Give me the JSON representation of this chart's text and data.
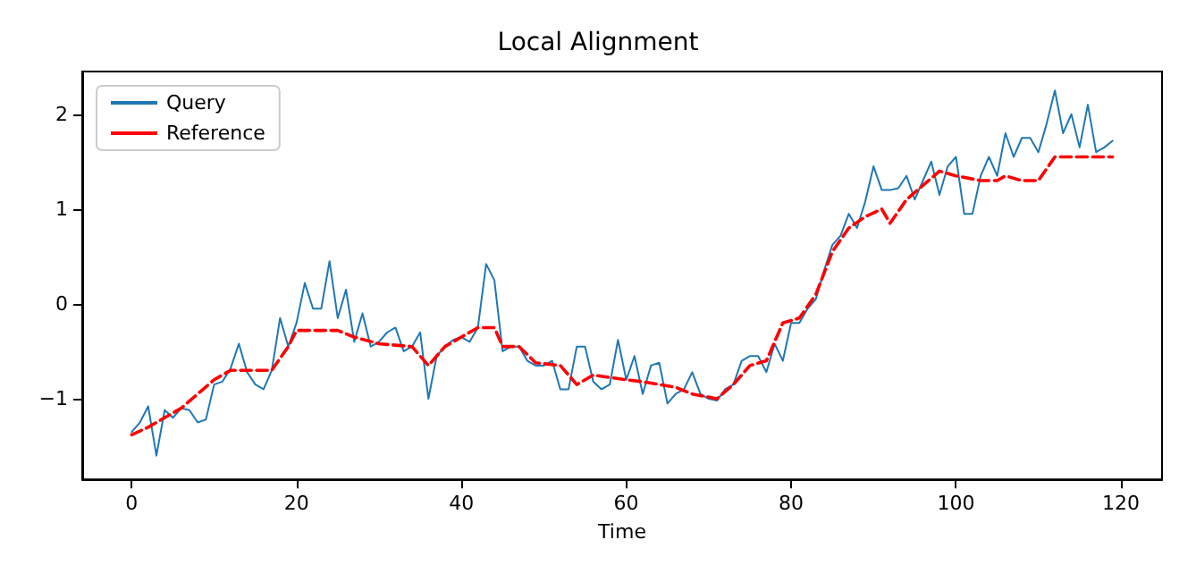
{
  "chart_data": {
    "type": "line",
    "title": "Local Alignment",
    "xlabel": "Time",
    "xlim": [
      -6,
      125
    ],
    "xticks": [
      0,
      20,
      40,
      60,
      80,
      100,
      120
    ],
    "ylim": [
      -1.85,
      2.45
    ],
    "yticks": [
      -1,
      0,
      1,
      2
    ],
    "grid": false,
    "legend": "top left",
    "marker": "none",
    "series": [
      {
        "name": "Query",
        "color": "#1f77b4",
        "line_style": "solid",
        "x": [
          0,
          1,
          2,
          3,
          4,
          5,
          6,
          7,
          8,
          9,
          10,
          11,
          12,
          13,
          14,
          15,
          16,
          17,
          18,
          19,
          20,
          21,
          22,
          23,
          24,
          25,
          26,
          27,
          28,
          29,
          30,
          31,
          32,
          33,
          34,
          35,
          36,
          37,
          38,
          39,
          40,
          41,
          42,
          43,
          44,
          45,
          46,
          47,
          48,
          49,
          50,
          51,
          52,
          53,
          54,
          55,
          56,
          57,
          58,
          59,
          60,
          61,
          62,
          63,
          64,
          65,
          66,
          67,
          68,
          69,
          70,
          71,
          72,
          73,
          74,
          75,
          76,
          77,
          78,
          79,
          80,
          81,
          82,
          83,
          84,
          85,
          86,
          87,
          88,
          89,
          90,
          91,
          92,
          93,
          94,
          95,
          96,
          97,
          98,
          99,
          100,
          101,
          102,
          103,
          104,
          105,
          106,
          107,
          108,
          109,
          110,
          111,
          112,
          113,
          114,
          115,
          116,
          117,
          118,
          119
        ],
        "values": [
          -1.35,
          -1.25,
          -1.08,
          -1.6,
          -1.12,
          -1.2,
          -1.1,
          -1.12,
          -1.25,
          -1.22,
          -0.85,
          -0.82,
          -0.68,
          -0.42,
          -0.72,
          -0.85,
          -0.9,
          -0.7,
          -0.15,
          -0.45,
          -0.2,
          0.22,
          -0.05,
          -0.05,
          0.45,
          -0.15,
          0.15,
          -0.4,
          -0.1,
          -0.45,
          -0.4,
          -0.3,
          -0.25,
          -0.5,
          -0.45,
          -0.3,
          -1.0,
          -0.55,
          -0.45,
          -0.38,
          -0.35,
          -0.4,
          -0.25,
          0.42,
          0.25,
          -0.5,
          -0.45,
          -0.45,
          -0.6,
          -0.65,
          -0.65,
          -0.6,
          -0.9,
          -0.9,
          -0.45,
          -0.45,
          -0.82,
          -0.9,
          -0.85,
          -0.38,
          -0.8,
          -0.55,
          -0.95,
          -0.65,
          -0.62,
          -1.05,
          -0.95,
          -0.9,
          -0.72,
          -0.95,
          -1.0,
          -1.02,
          -0.9,
          -0.85,
          -0.6,
          -0.55,
          -0.55,
          -0.72,
          -0.42,
          -0.6,
          -0.2,
          -0.2,
          -0.05,
          0.05,
          0.35,
          0.62,
          0.72,
          0.95,
          0.8,
          1.08,
          1.45,
          1.2,
          1.2,
          1.22,
          1.35,
          1.1,
          1.3,
          1.5,
          1.15,
          1.45,
          1.55,
          0.95,
          0.95,
          1.35,
          1.55,
          1.35,
          1.8,
          1.55,
          1.75,
          1.75,
          1.6,
          1.9,
          2.25,
          1.8,
          2.0,
          1.65,
          2.1,
          1.6,
          1.65,
          1.72
        ]
      },
      {
        "name": "Reference",
        "color": "#ff0000",
        "line_style": "dashed",
        "x": [
          0,
          2,
          4,
          6,
          8,
          10,
          12,
          17,
          19,
          20,
          25,
          27,
          30,
          34,
          36,
          38,
          40,
          42,
          44,
          45,
          47,
          49,
          52,
          54,
          56,
          60,
          62,
          64,
          66,
          68,
          71,
          73,
          75,
          77,
          79,
          81,
          83,
          85,
          87,
          89,
          91,
          92,
          94,
          96,
          98,
          100,
          103,
          105,
          106,
          108,
          110,
          112,
          119
        ],
        "values": [
          -1.38,
          -1.3,
          -1.2,
          -1.1,
          -0.95,
          -0.8,
          -0.7,
          -0.7,
          -0.45,
          -0.28,
          -0.28,
          -0.35,
          -0.42,
          -0.45,
          -0.65,
          -0.45,
          -0.35,
          -0.25,
          -0.25,
          -0.45,
          -0.45,
          -0.62,
          -0.65,
          -0.85,
          -0.75,
          -0.8,
          -0.82,
          -0.85,
          -0.88,
          -0.95,
          -1.0,
          -0.85,
          -0.65,
          -0.6,
          -0.2,
          -0.15,
          0.1,
          0.55,
          0.8,
          0.92,
          1.0,
          0.85,
          1.1,
          1.25,
          1.4,
          1.35,
          1.3,
          1.3,
          1.35,
          1.3,
          1.3,
          1.55,
          1.55
        ]
      }
    ]
  }
}
